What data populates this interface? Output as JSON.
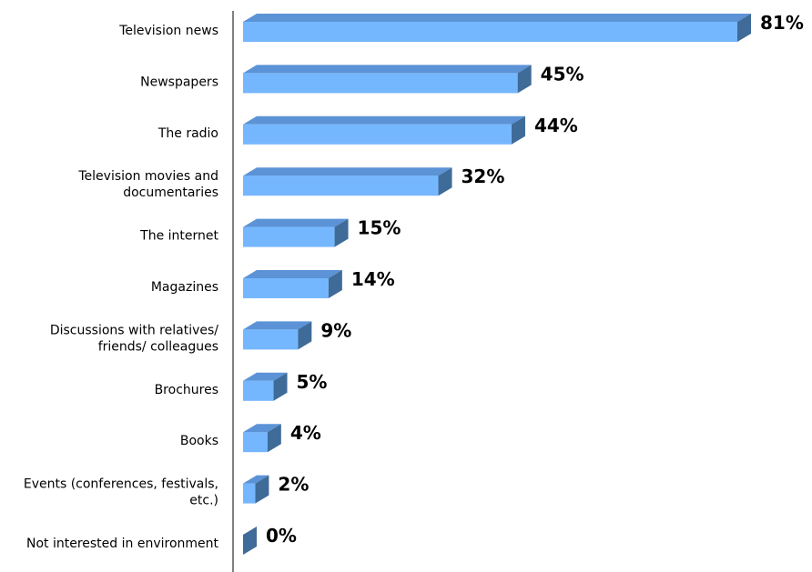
{
  "chart_data": {
    "type": "bar",
    "orientation": "horizontal",
    "categories": [
      "Television news",
      "Newspapers",
      "The radio",
      "Television movies and documentaries",
      "The internet",
      "Magazines",
      "Discussions with relatives/ friends/ colleagues",
      "Brochures",
      "Books",
      "Events (conferences, festivals, etc.)",
      "Not interested in environment"
    ],
    "category_lines": [
      [
        "Television news"
      ],
      [
        "Newspapers"
      ],
      [
        "The radio"
      ],
      [
        "Television movies and",
        "documentaries"
      ],
      [
        "The internet"
      ],
      [
        "Magazines"
      ],
      [
        "Discussions with relatives/",
        "friends/ colleagues"
      ],
      [
        "Brochures"
      ],
      [
        "Books"
      ],
      [
        "Events (conferences, festivals,",
        "etc.)"
      ],
      [
        "Not interested in environment"
      ]
    ],
    "values": [
      81,
      45,
      44,
      32,
      15,
      14,
      9,
      5,
      4,
      2,
      0
    ],
    "value_labels": [
      "81%",
      "45%",
      "44%",
      "32%",
      "15%",
      "14%",
      "9%",
      "5%",
      "4%",
      "2%",
      "0%"
    ],
    "unit": "%",
    "xlim": [
      0,
      81
    ],
    "grid": false,
    "legend": "none",
    "colors": {
      "bar_front": "#75b7ff",
      "bar_top": "#5b93d6",
      "bar_side": "#3f6b99",
      "axis": "#000000"
    }
  }
}
